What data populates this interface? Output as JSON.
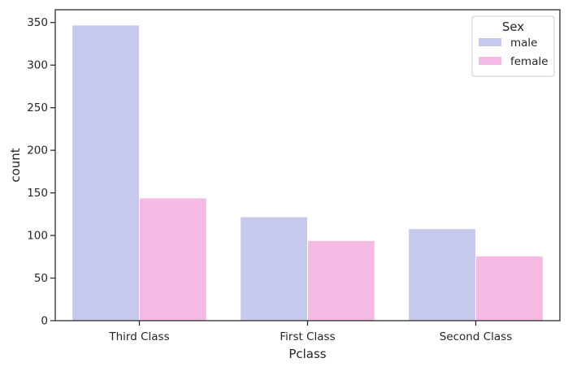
{
  "chart_data": {
    "type": "bar",
    "xlabel": "Pclass",
    "ylabel": "count",
    "categories": [
      "Third Class",
      "First Class",
      "Second Class"
    ],
    "series": [
      {
        "name": "male",
        "values": [
          347,
          122,
          108
        ],
        "color": "#c6c8ec"
      },
      {
        "name": "female",
        "values": [
          144,
          94,
          76
        ],
        "color": "#f4bae3"
      }
    ],
    "ylim": [
      0,
      365
    ],
    "yticks": [
      0,
      50,
      100,
      150,
      200,
      250,
      300,
      350
    ],
    "grid": false,
    "legend": {
      "title": "Sex",
      "position": "top-right"
    }
  }
}
